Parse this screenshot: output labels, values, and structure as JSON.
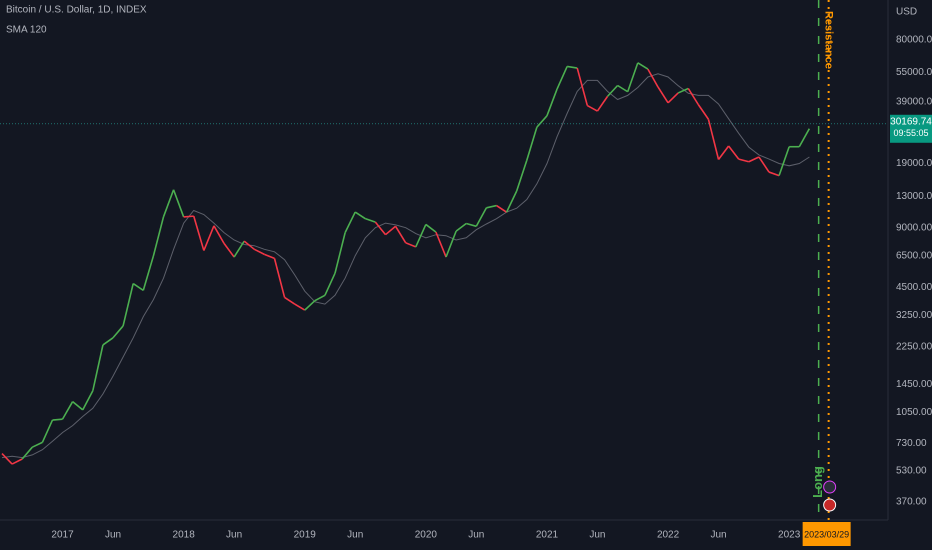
{
  "chart_data": {
    "type": "line",
    "log_scale": true,
    "y_axis_label": "USD",
    "x": [
      "2016-07",
      "2016-08",
      "2016-09",
      "2016-10",
      "2016-11",
      "2016-12",
      "2017-01",
      "2017-02",
      "2017-03",
      "2017-04",
      "2017-05",
      "2017-06",
      "2017-07",
      "2017-08",
      "2017-09",
      "2017-10",
      "2017-11",
      "2017-12",
      "2018-01",
      "2018-02",
      "2018-03",
      "2018-04",
      "2018-05",
      "2018-06",
      "2018-07",
      "2018-08",
      "2018-09",
      "2018-10",
      "2018-11",
      "2018-12",
      "2019-01",
      "2019-02",
      "2019-03",
      "2019-04",
      "2019-05",
      "2019-06",
      "2019-07",
      "2019-08",
      "2019-09",
      "2019-10",
      "2019-11",
      "2019-12",
      "2020-01",
      "2020-02",
      "2020-03",
      "2020-04",
      "2020-05",
      "2020-06",
      "2020-07",
      "2020-08",
      "2020-09",
      "2020-10",
      "2020-11",
      "2020-12",
      "2021-01",
      "2021-02",
      "2021-03",
      "2021-04",
      "2021-05",
      "2021-06",
      "2021-07",
      "2021-08",
      "2021-09",
      "2021-10",
      "2021-11",
      "2021-12",
      "2022-01",
      "2022-02",
      "2022-03",
      "2022-04",
      "2022-05",
      "2022-06",
      "2022-07",
      "2022-08",
      "2022-09",
      "2022-10",
      "2022-11",
      "2022-12",
      "2023-01",
      "2023-02",
      "2023-03"
    ],
    "series": [
      {
        "name": "Bitcoin / U.S. Dollar, 1D, INDEX",
        "color": "#4caf50",
        "down_color": "#f23645",
        "values": [
          650,
          575,
          610,
          700,
          740,
          960,
          970,
          1190,
          1080,
          1350,
          2300,
          2500,
          2870,
          4700,
          4340,
          6470,
          10200,
          14000,
          10200,
          10300,
          6900,
          9200,
          7500,
          6400,
          7700,
          7000,
          6600,
          6300,
          4000,
          3700,
          3450,
          3850,
          4100,
          5300,
          8500,
          10800,
          10000,
          9600,
          8300,
          9150,
          7550,
          7200,
          9350,
          8550,
          6400,
          8650,
          9450,
          9150,
          11350,
          11650,
          10780,
          13800,
          19700,
          29000,
          33100,
          45200,
          58800,
          57700,
          37300,
          35000,
          41500,
          47100,
          43800,
          61300,
          57000,
          46300,
          38500,
          43200,
          45500,
          37700,
          31800,
          19900,
          23300,
          20000,
          19400,
          20500,
          17200,
          16500,
          23100,
          23100,
          28500
        ]
      },
      {
        "name": "SMA 120",
        "color": "#5d606b",
        "values": [
          620,
          630,
          620,
          640,
          680,
          750,
          830,
          900,
          1000,
          1100,
          1300,
          1600,
          2000,
          2500,
          3200,
          3900,
          5000,
          7000,
          9500,
          11000,
          10500,
          9500,
          8500,
          7800,
          7400,
          7300,
          7000,
          6800,
          6200,
          5200,
          4300,
          3800,
          3700,
          4100,
          5000,
          6500,
          8000,
          9000,
          9500,
          9300,
          9000,
          8400,
          8000,
          8300,
          8200,
          7800,
          8000,
          8800,
          9400,
          10000,
          10800,
          11300,
          12500,
          15000,
          19000,
          26000,
          34000,
          44000,
          50000,
          50000,
          44000,
          40000,
          42000,
          46000,
          52000,
          54000,
          52000,
          47000,
          43000,
          42000,
          42000,
          38000,
          32000,
          27000,
          23000,
          21000,
          20000,
          19000,
          18500,
          19000,
          20500
        ]
      }
    ],
    "xlim": [
      "2016-07",
      "2023-10"
    ],
    "xticks": [
      {
        "value": "2017-01",
        "label": "2017"
      },
      {
        "value": "2017-06",
        "label": "Jun"
      },
      {
        "value": "2018-01",
        "label": "2018"
      },
      {
        "value": "2018-06",
        "label": "Jun"
      },
      {
        "value": "2019-01",
        "label": "2019"
      },
      {
        "value": "2019-06",
        "label": "Jun"
      },
      {
        "value": "2020-01",
        "label": "2020"
      },
      {
        "value": "2020-06",
        "label": "Jun"
      },
      {
        "value": "2021-01",
        "label": "2021"
      },
      {
        "value": "2021-06",
        "label": "Jun"
      },
      {
        "value": "2022-01",
        "label": "2022"
      },
      {
        "value": "2022-06",
        "label": "Jun"
      },
      {
        "value": "2023-01",
        "label": "2023"
      }
    ],
    "ylim": [
      307,
      127400
    ],
    "yticks": [
      {
        "value": 80000,
        "label": "80000.00"
      },
      {
        "value": 55000,
        "label": "55000.00"
      },
      {
        "value": 39000,
        "label": "39000.00"
      },
      {
        "value": 19000,
        "label": "19000.00"
      },
      {
        "value": 13000,
        "label": "13000.00"
      },
      {
        "value": 9000,
        "label": "9000.00"
      },
      {
        "value": 6500,
        "label": "6500.00"
      },
      {
        "value": 4500,
        "label": "4500.00"
      },
      {
        "value": 3250,
        "label": "3250.00"
      },
      {
        "value": 2250,
        "label": "2250.00"
      },
      {
        "value": 1450,
        "label": "1450.00"
      },
      {
        "value": 1050,
        "label": "1050.00"
      },
      {
        "value": 730,
        "label": "730.00"
      },
      {
        "value": 530,
        "label": "530.00"
      },
      {
        "value": 370,
        "label": "370.00"
      }
    ],
    "current_price": 30169.74,
    "countdown": "09:55:05",
    "marker_date": "2023/03/29",
    "annotations": {
      "resistance": "Resistance",
      "long": "Long"
    }
  }
}
